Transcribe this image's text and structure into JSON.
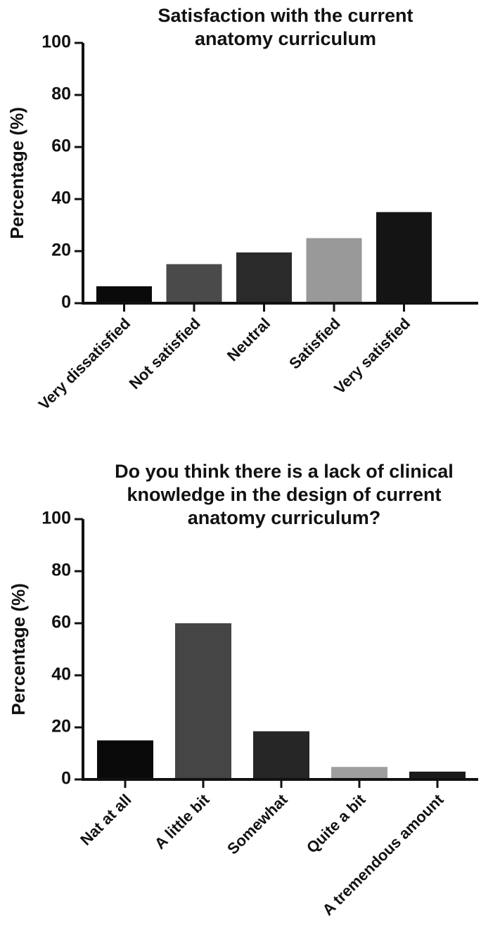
{
  "chart_data": [
    {
      "type": "bar",
      "title_lines": [
        "Satisfaction with the current",
        "anatomy curriculum"
      ],
      "ylabel": "Percentage (%)",
      "xlabel": "",
      "ylim": [
        0,
        100
      ],
      "yticks": [
        0,
        20,
        40,
        60,
        80,
        100
      ],
      "categories": [
        "Very dissatisfied",
        "Not satisfied",
        "Neutral",
        "Satisfied",
        "Very satisfied"
      ],
      "values": [
        6.5,
        15,
        19.5,
        25,
        35
      ],
      "colors": [
        "#0a0a0a",
        "#4a4a4a",
        "#2a2a2a",
        "#999999",
        "#141414"
      ],
      "grid": false,
      "legend": "none"
    },
    {
      "type": "bar",
      "title_lines": [
        "Do you think there is a lack of clinical",
        "knowledge in the design of  current",
        "anatomy  curriculum?"
      ],
      "ylabel": "Percentage (%)",
      "xlabel": "",
      "ylim": [
        0,
        100
      ],
      "yticks": [
        0,
        20,
        40,
        60,
        80,
        100
      ],
      "categories": [
        "Nat at all",
        "A little bit",
        "Somewhat",
        "Quite a bit",
        "A tremendous amount"
      ],
      "values": [
        15,
        60,
        18.5,
        4.8,
        3
      ],
      "colors": [
        "#0a0a0a",
        "#454545",
        "#262626",
        "#9e9e9e",
        "#1a1a1a"
      ],
      "grid": false,
      "legend": "none"
    }
  ]
}
